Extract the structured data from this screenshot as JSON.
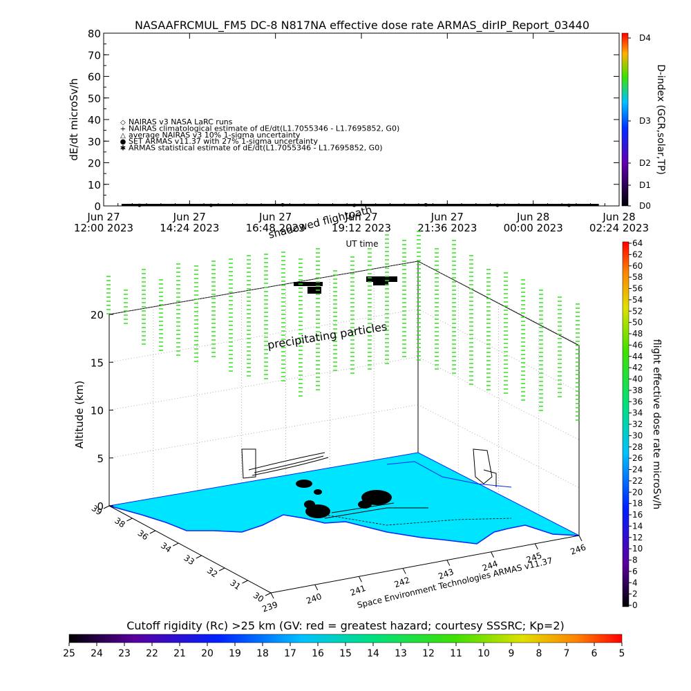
{
  "title": "NASAAFRCMUL_FM5 DC-8    N817NA effective dose rate ARMAS_dirIP_Report_03440",
  "colors": {
    "land": "#00e5ff",
    "coast": "#0026ff",
    "trace": "#2ee61a",
    "track": "#000000"
  },
  "top_panel": {
    "ylabel": "dE/dt microSv/h",
    "xlabel": "UT time",
    "yticks": [
      "0",
      "10",
      "20",
      "30",
      "40",
      "50",
      "60",
      "70",
      "80"
    ],
    "xticks": [
      {
        "date": "Jun 27",
        "time": "12:00 2023"
      },
      {
        "date": "Jun 27",
        "time": "14:24 2023"
      },
      {
        "date": "Jun 27",
        "time": "16:48 2023"
      },
      {
        "date": "Jun 27",
        "time": "19:12 2023"
      },
      {
        "date": "Jun 27",
        "time": "21:36 2023"
      },
      {
        "date": "Jun 28",
        "time": "00:00 2023"
      },
      {
        "date": "Jun 28",
        "time": "02:24 2023"
      }
    ],
    "legend": [
      {
        "symbol": "◇",
        "label": "NAIRAS v3 NASA LaRC runs"
      },
      {
        "symbol": "+",
        "label": "NAIRAS climatological estimate of dE/dt(L1.7055346 - L1.7695852, G0)"
      },
      {
        "symbol": "△",
        "label": "average NAIRAS v3 10% 1-sigma uncertainty"
      },
      {
        "symbol": "●",
        "label": "SET ARMAS v11.37 with 27% 1-sigma uncertainty"
      },
      {
        "symbol": "✱",
        "label": "ARMAS statistical estimate of dE/dt(L1.7055346 - L1.7695852, G0)"
      }
    ],
    "right_axis_label": "D-index (GCR,solar,TP)",
    "right_ticks": [
      "D0",
      "D1",
      "D2",
      "D3",
      "D4"
    ]
  },
  "main_panel": {
    "annotation_precip": "precipitating particles",
    "annotation_shadow": "shadowed flightpath",
    "ylabel": "Altitude (km)",
    "alt_ticks": [
      "0",
      "5",
      "10",
      "15",
      "20"
    ],
    "lat_ticks": [
      "39",
      "38",
      "36",
      "34",
      "33",
      "32",
      "31",
      "30"
    ],
    "lon_ticks": [
      "239",
      "240",
      "241",
      "242",
      "243",
      "244",
      "245",
      "246"
    ],
    "credit": "Space Environment Technologies ARMAS v11.37"
  },
  "right_colorbar": {
    "label": "flight effective dose rate microSv/h",
    "ticks": [
      "0",
      "2",
      "4",
      "6",
      "8",
      "10",
      "12",
      "14",
      "16",
      "18",
      "20",
      "22",
      "24",
      "26",
      "28",
      "30",
      "32",
      "34",
      "36",
      "38",
      "40",
      "42",
      "44",
      "46",
      "48",
      "50",
      "52",
      "54",
      "56",
      "58",
      "60",
      "62",
      "64"
    ]
  },
  "bottom_colorbar": {
    "title": "Cutoff rigidity (Rc) >25 km (GV: red = greatest hazard; courtesy SSSRC; Kp=2)",
    "ticks": [
      "25",
      "24",
      "23",
      "22",
      "21",
      "20",
      "19",
      "18",
      "17",
      "16",
      "15",
      "14",
      "13",
      "12",
      "11",
      "10",
      "9",
      "8",
      "7",
      "6",
      "5"
    ]
  },
  "chart_data": {
    "type": "scatter",
    "title": "NASAAFRCMUL_FM5 DC-8    N817NA effective dose rate ARMAS_dirIP_Report_03440",
    "xlabel": "UT time",
    "ylabel": "dE/dt microSv/h",
    "ylim": [
      0,
      80
    ],
    "xlim": [
      "Jun 27 12:00 2023",
      "Jun 28 02:24 2023"
    ],
    "series": [
      {
        "name": "SET ARMAS v11.37 with 27% 1-sigma uncertainty",
        "x": [
          "Jun 27 13:00 2023",
          "Jun 27 15:00 2023",
          "Jun 27 17:00 2023",
          "Jun 27 19:00 2023",
          "Jun 27 21:00 2023",
          "Jun 27 23:00 2023",
          "Jun 28 01:00 2023"
        ],
        "values": [
          0.3,
          0.3,
          0.5,
          0.3,
          0.5,
          0.3,
          0.3
        ]
      }
    ],
    "grid": false,
    "legend_position": "center-left"
  }
}
